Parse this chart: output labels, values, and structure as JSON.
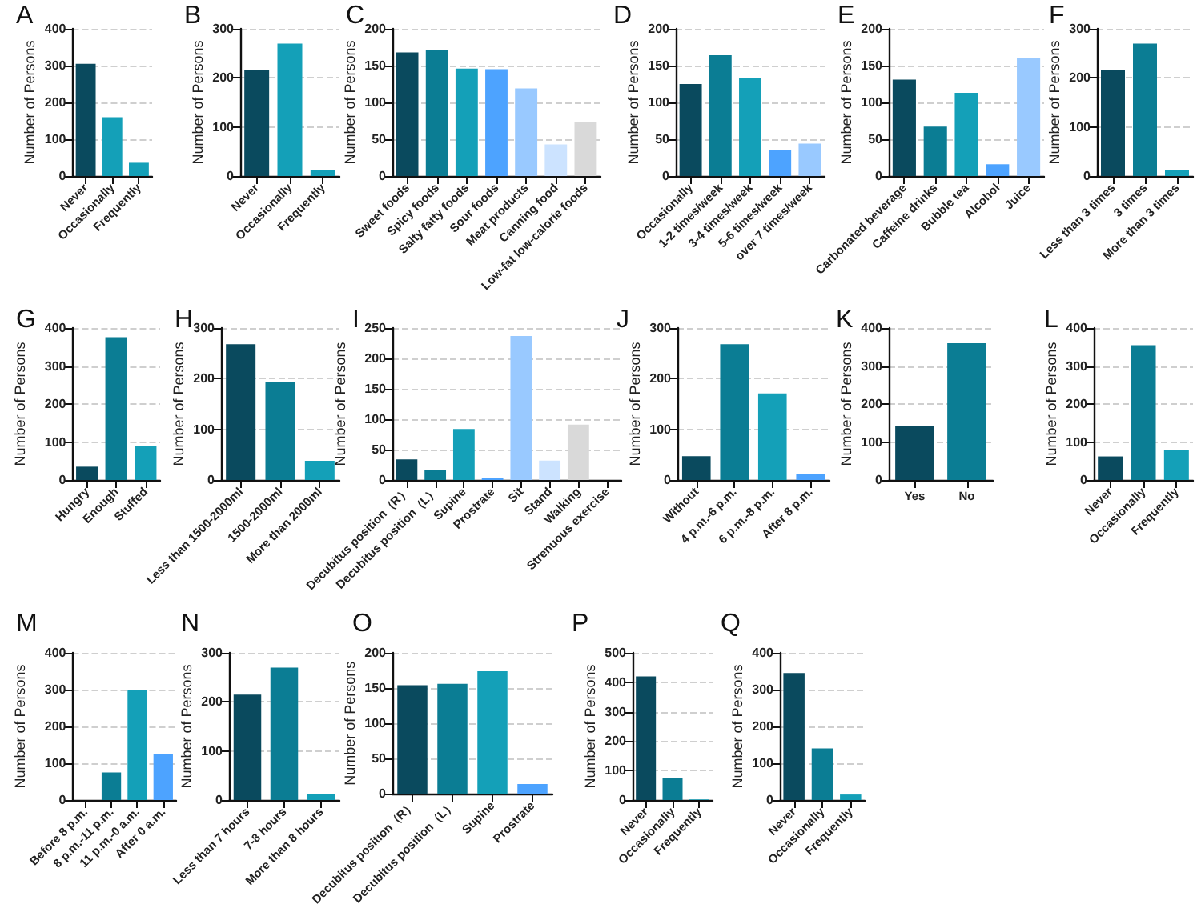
{
  "chart_data": [
    {
      "type": "bar",
      "title": "A",
      "ylabel": "Number of Persons",
      "categories": [
        "Never",
        "Occasionally",
        "Frequently"
      ],
      "values": [
        305,
        160,
        36
      ],
      "colors": [
        "#0a4a5e",
        "#14a0b8",
        "#14a0b8"
      ],
      "ylim": [
        0,
        400
      ],
      "yticks": [
        0,
        100,
        200,
        300,
        400
      ],
      "grid": "y"
    },
    {
      "type": "bar",
      "title": "B",
      "ylabel": "Number of Persons",
      "categories": [
        "Never",
        "Occasionally",
        "Frequently"
      ],
      "values": [
        217,
        270,
        12
      ],
      "colors": [
        "#0a4a5e",
        "#14a0b8",
        "#14a0b8"
      ],
      "ylim": [
        0,
        300
      ],
      "yticks": [
        0,
        100,
        200,
        300
      ],
      "grid": "y"
    },
    {
      "type": "bar",
      "title": "C",
      "ylabel": "Number of Persons",
      "categories": [
        "Sweet foods",
        "Spicy foods",
        "Salty fatty foods",
        "Sour foods",
        "Meat products",
        "Canning food",
        "Low-fat low-calorie foods"
      ],
      "values": [
        168,
        171,
        146,
        145,
        119,
        43,
        73
      ],
      "colors": [
        "#0a4a5e",
        "#0b7d94",
        "#14a0b8",
        "#4da3ff",
        "#99c9ff",
        "#cce3ff",
        "#d9d9d9"
      ],
      "ylim": [
        0,
        200
      ],
      "yticks": [
        0,
        50,
        100,
        150,
        200
      ],
      "grid": "y"
    },
    {
      "type": "bar",
      "title": "D",
      "ylabel": "Number of Persons",
      "categories": [
        "Occasionally",
        "1-2 times/week",
        "3-4 times/week",
        "5-6 times/week",
        "over 7 times/week"
      ],
      "values": [
        125,
        164,
        133,
        35,
        44
      ],
      "colors": [
        "#0a4a5e",
        "#0b7d94",
        "#14a0b8",
        "#4da3ff",
        "#99c9ff"
      ],
      "ylim": [
        0,
        200
      ],
      "yticks": [
        0,
        50,
        100,
        150,
        200
      ],
      "grid": "y"
    },
    {
      "type": "bar",
      "title": "E",
      "ylabel": "Number of Persons",
      "categories": [
        "Carbonated beverage",
        "Caffeine drinks",
        "Bubble tea",
        "Alcohol",
        "Juice"
      ],
      "values": [
        131,
        67,
        113,
        16,
        161
      ],
      "colors": [
        "#0a4a5e",
        "#0b7d94",
        "#14a0b8",
        "#4da3ff",
        "#99c9ff"
      ],
      "ylim": [
        0,
        200
      ],
      "yticks": [
        0,
        50,
        100,
        150,
        200
      ],
      "grid": "y"
    },
    {
      "type": "bar",
      "title": "F",
      "ylabel": "Number of Persons",
      "categories": [
        "Less than 3 times",
        "3 times",
        "More than 3 times"
      ],
      "values": [
        217,
        270,
        12
      ],
      "colors": [
        "#0a4a5e",
        "#0b7d94",
        "#14a0b8"
      ],
      "ylim": [
        0,
        300
      ],
      "yticks": [
        0,
        100,
        200,
        300
      ],
      "grid": "y"
    },
    {
      "type": "bar",
      "title": "G",
      "ylabel": "Number of Persons",
      "categories": [
        "Hungry",
        "Enough",
        "Stuffed"
      ],
      "values": [
        35,
        376,
        89
      ],
      "colors": [
        "#0a4a5e",
        "#0b7d94",
        "#14a0b8"
      ],
      "ylim": [
        0,
        400
      ],
      "yticks": [
        0,
        100,
        200,
        300,
        400
      ],
      "grid": "y"
    },
    {
      "type": "bar",
      "title": "H",
      "ylabel": "Number of Persons",
      "categories": [
        "Less than 1500-2000ml",
        "1500-2000ml",
        "More than 2000ml"
      ],
      "values": [
        268,
        193,
        38
      ],
      "colors": [
        "#0a4a5e",
        "#0b7d94",
        "#14a0b8"
      ],
      "ylim": [
        0,
        300
      ],
      "yticks": [
        0,
        100,
        200,
        300
      ],
      "grid": "y"
    },
    {
      "type": "bar",
      "title": "I",
      "ylabel": "Number of Persons",
      "categories": [
        "Decubitus position（R）",
        "Decubitus position（L）",
        "Supine",
        "Prostrate",
        "Sit",
        "Stand",
        "Walking",
        "Strenuous exercise"
      ],
      "values": [
        34,
        17,
        84,
        4,
        237,
        32,
        91,
        null
      ],
      "colors": [
        "#0a4a5e",
        "#0b7d94",
        "#14a0b8",
        "#4da3ff",
        "#99c9ff",
        "#cce3ff",
        "#d9d9d9",
        "#d9d9d9"
      ],
      "ylim": [
        0,
        250
      ],
      "yticks": [
        0,
        50,
        100,
        150,
        200,
        250
      ],
      "grid": "y"
    },
    {
      "type": "bar",
      "title": "J",
      "ylabel": "Number of Persons",
      "categories": [
        "Without",
        "4 p.m.-6 p.m.",
        "6 p.m.-8 p.m.",
        "After 8 p.m."
      ],
      "values": [
        47,
        268,
        171,
        12
      ],
      "colors": [
        "#0a4a5e",
        "#0b7d94",
        "#14a0b8",
        "#4da3ff"
      ],
      "ylim": [
        0,
        300
      ],
      "yticks": [
        0,
        100,
        200,
        300
      ],
      "grid": "y"
    },
    {
      "type": "bar",
      "title": "K",
      "ylabel": "Number of Persons",
      "categories": [
        "Yes",
        "No"
      ],
      "values": [
        141,
        360
      ],
      "colors": [
        "#0a4a5e",
        "#0b7d94"
      ],
      "ylim": [
        0,
        400
      ],
      "yticks": [
        0,
        100,
        200,
        300,
        400
      ],
      "grid": "y"
    },
    {
      "type": "bar",
      "title": "L",
      "ylabel": "Number of Persons",
      "categories": [
        "Never",
        "Occasionally",
        "Frequently"
      ],
      "values": [
        62,
        355,
        80
      ],
      "colors": [
        "#0a4a5e",
        "#0b7d94",
        "#14a0b8"
      ],
      "ylim": [
        0,
        400
      ],
      "yticks": [
        0,
        100,
        200,
        300,
        400
      ],
      "grid": "y"
    },
    {
      "type": "bar",
      "title": "M",
      "ylabel": "Number of Persons",
      "categories": [
        "Before 8 p.m.",
        "8 p.m.-11 p.m.",
        "11 p.m.-0 a.m.",
        "After 0 a.m."
      ],
      "values": [
        0,
        75,
        300,
        125
      ],
      "colors": [
        "#0a4a5e",
        "#0b7d94",
        "#14a0b8",
        "#4da3ff"
      ],
      "ylim": [
        0,
        400
      ],
      "yticks": [
        0,
        100,
        200,
        300,
        400
      ],
      "grid": "y"
    },
    {
      "type": "bar",
      "title": "N",
      "ylabel": "Number of Persons",
      "categories": [
        "Less than 7 hours",
        "7-8 hours",
        "More than 8 hours"
      ],
      "values": [
        215,
        270,
        13
      ],
      "colors": [
        "#0a4a5e",
        "#0b7d94",
        "#14a0b8"
      ],
      "ylim": [
        0,
        300
      ],
      "yticks": [
        0,
        100,
        200,
        300
      ],
      "grid": "y"
    },
    {
      "type": "bar",
      "title": "O",
      "ylabel": "Number of Persons",
      "categories": [
        "Decubitus position（R）",
        "Decubitus position（L）",
        "Supine",
        "Prostrate"
      ],
      "values": [
        154,
        156,
        174,
        14
      ],
      "colors": [
        "#0a4a5e",
        "#0b7d94",
        "#14a0b8",
        "#4da3ff"
      ],
      "ylim": [
        0,
        200
      ],
      "yticks": [
        0,
        50,
        100,
        150,
        200
      ],
      "grid": "y"
    },
    {
      "type": "bar",
      "title": "P",
      "ylabel": "Number of Persons",
      "categories": [
        "Never",
        "Occasionally",
        "Frequently"
      ],
      "values": [
        420,
        75,
        2
      ],
      "colors": [
        "#0a4a5e",
        "#0b7d94",
        "#14a0b8"
      ],
      "ylim": [
        0,
        500
      ],
      "yticks": [
        0,
        100,
        200,
        300,
        400,
        500
      ],
      "grid": "y"
    },
    {
      "type": "bar",
      "title": "Q",
      "ylabel": "Number of Persons",
      "categories": [
        "Never",
        "Occasionally",
        "Frequently"
      ],
      "values": [
        345,
        140,
        15
      ],
      "colors": [
        "#0a4a5e",
        "#0b7d94",
        "#14a0b8"
      ],
      "ylim": [
        0,
        400
      ],
      "yticks": [
        0,
        100,
        200,
        300,
        400
      ],
      "grid": "y"
    }
  ]
}
